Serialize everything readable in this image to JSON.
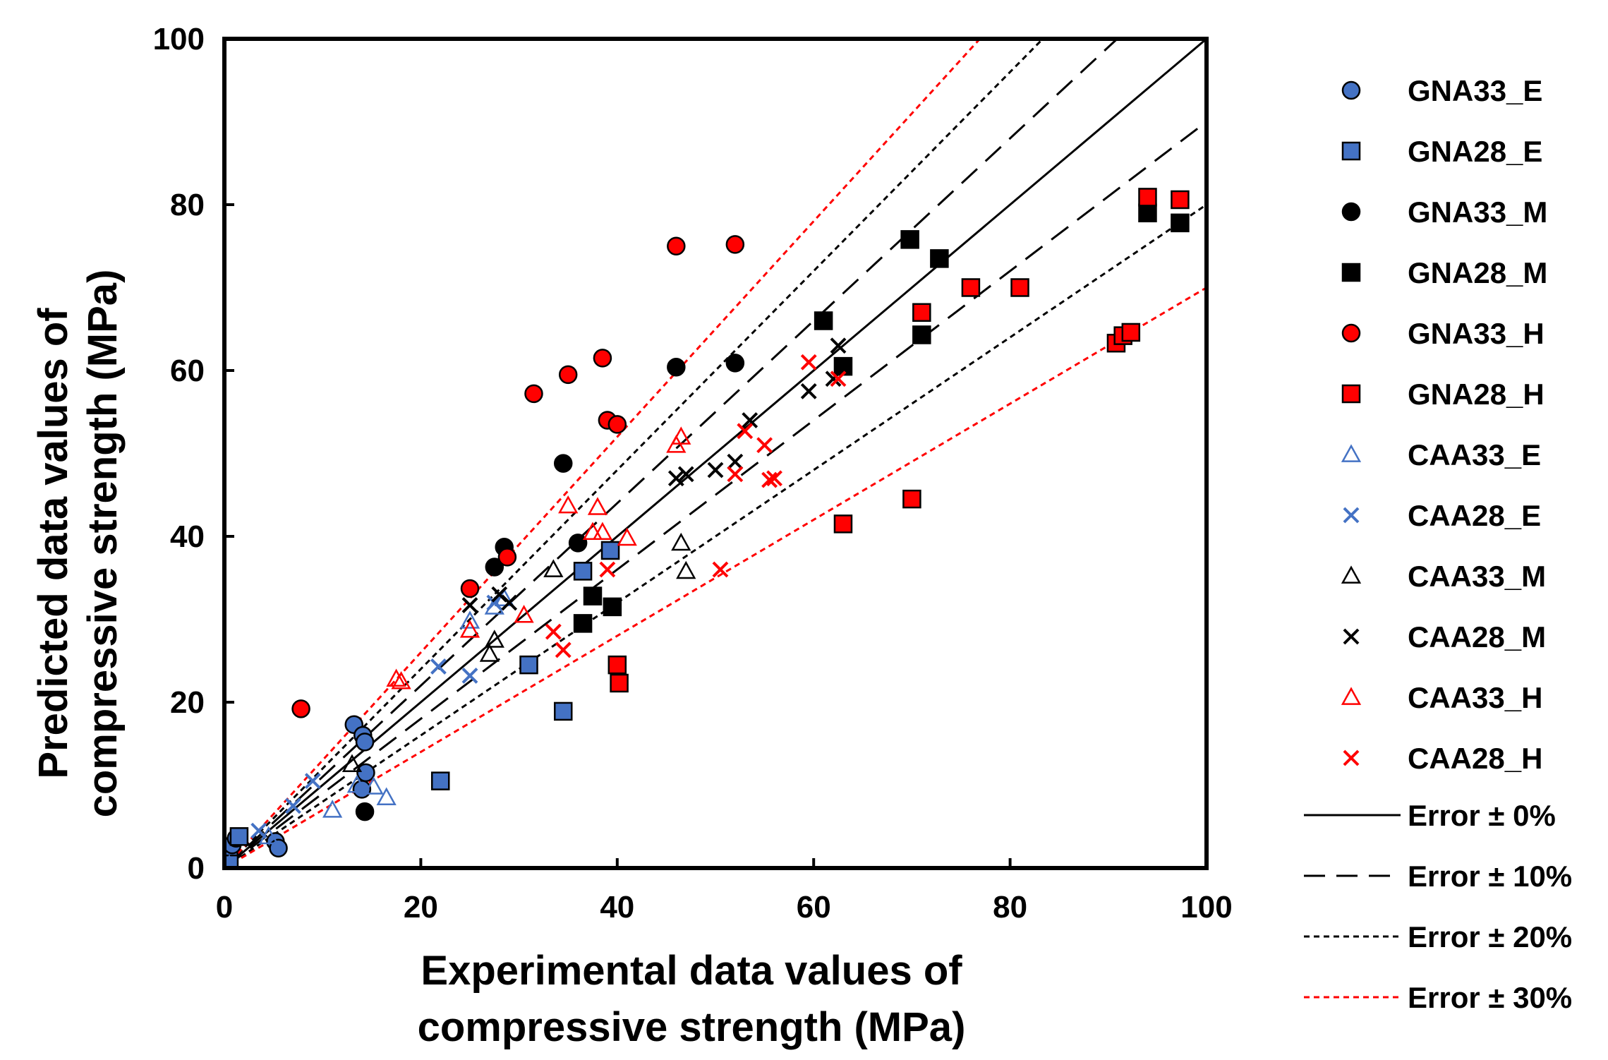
{
  "chart_data": {
    "type": "scatter",
    "xlabel_lines": [
      "Experimental data values of",
      "compressive strength (MPa)"
    ],
    "ylabel_lines": [
      "Predicted data values of",
      "compressive strength (MPa)"
    ],
    "xlim": [
      0,
      100
    ],
    "ylim": [
      0,
      100
    ],
    "xticks": [
      0,
      20,
      40,
      60,
      80,
      100
    ],
    "yticks": [
      0,
      20,
      40,
      60,
      80,
      100
    ],
    "grid": false,
    "legend_position": "right",
    "series": [
      {
        "name": "GNA33_E",
        "marker": "circle",
        "color": "#4472C4",
        "points": [
          [
            0.3,
            0.3
          ],
          [
            0.5,
            1.5
          ],
          [
            0.8,
            2.8
          ],
          [
            1.2,
            3.6
          ],
          [
            5.2,
            3.2
          ],
          [
            5.5,
            2.4
          ],
          [
            13.2,
            17.3
          ],
          [
            14.1,
            16.0
          ],
          [
            14.3,
            15.2
          ],
          [
            14.4,
            11.5
          ],
          [
            14.0,
            9.5
          ]
        ]
      },
      {
        "name": "GNA28_E",
        "marker": "square",
        "color": "#4472C4",
        "points": [
          [
            0.5,
            0.5
          ],
          [
            1.5,
            3.8
          ],
          [
            22.0,
            10.5
          ],
          [
            31.0,
            24.5
          ],
          [
            34.5,
            18.9
          ],
          [
            36.5,
            35.8
          ],
          [
            39.3,
            38.3
          ]
        ]
      },
      {
        "name": "GNA33_M",
        "marker": "circle",
        "color": "#000000",
        "points": [
          [
            14.3,
            6.8
          ],
          [
            27.5,
            36.3
          ],
          [
            28.5,
            38.7
          ],
          [
            34.5,
            48.8
          ],
          [
            36.0,
            39.2
          ],
          [
            46.0,
            60.4
          ],
          [
            52.0,
            60.9
          ]
        ]
      },
      {
        "name": "GNA28_M",
        "marker": "square",
        "color": "#000000",
        "points": [
          [
            36.5,
            29.5
          ],
          [
            37.5,
            32.8
          ],
          [
            39.5,
            31.5
          ],
          [
            61.0,
            66.0
          ],
          [
            63.0,
            60.5
          ],
          [
            69.8,
            75.8
          ],
          [
            71.0,
            64.3
          ],
          [
            72.8,
            73.5
          ],
          [
            94.0,
            79.0
          ],
          [
            97.3,
            77.8
          ]
        ]
      },
      {
        "name": "GNA33_H",
        "marker": "circle",
        "color": "#FF0000",
        "points": [
          [
            7.8,
            19.2
          ],
          [
            25.0,
            33.7
          ],
          [
            28.8,
            37.5
          ],
          [
            31.5,
            57.2
          ],
          [
            35.0,
            59.5
          ],
          [
            38.5,
            61.5
          ],
          [
            39.0,
            54.0
          ],
          [
            40.0,
            53.5
          ],
          [
            46.0,
            75.0
          ],
          [
            52.0,
            75.2
          ]
        ]
      },
      {
        "name": "GNA28_H",
        "marker": "square",
        "color": "#FF0000",
        "points": [
          [
            40.0,
            24.5
          ],
          [
            40.2,
            22.3
          ],
          [
            63.0,
            41.5
          ],
          [
            70.0,
            44.5
          ],
          [
            71.0,
            67.0
          ],
          [
            76.0,
            70.0
          ],
          [
            81.0,
            70.0
          ],
          [
            90.8,
            63.3
          ],
          [
            91.5,
            64.2
          ],
          [
            92.3,
            64.6
          ],
          [
            94.0,
            80.9
          ],
          [
            97.3,
            80.6
          ]
        ]
      },
      {
        "name": "CAA33_E",
        "marker": "triangle",
        "color": "#4472C4",
        "points": [
          [
            0.5,
            0.4
          ],
          [
            4.5,
            3.8
          ],
          [
            11.0,
            7.0
          ],
          [
            13.5,
            10.0
          ],
          [
            15.2,
            9.8
          ],
          [
            16.5,
            8.5
          ],
          [
            25.0,
            29.8
          ],
          [
            27.5,
            31.5
          ],
          [
            28.5,
            32.5
          ]
        ]
      },
      {
        "name": "CAA28_E",
        "marker": "x",
        "color": "#4472C4",
        "points": [
          [
            3.5,
            4.5
          ],
          [
            7.0,
            7.5
          ],
          [
            9.0,
            10.5
          ],
          [
            21.8,
            24.3
          ],
          [
            25.0,
            23.2
          ],
          [
            27.5,
            32.0
          ]
        ]
      },
      {
        "name": "CAA33_M",
        "marker": "triangle",
        "color": "#000000",
        "points": [
          [
            13.0,
            12.5
          ],
          [
            27.0,
            25.8
          ],
          [
            27.5,
            27.5
          ],
          [
            33.5,
            36.0
          ],
          [
            46.5,
            39.2
          ],
          [
            47.0,
            35.8
          ]
        ]
      },
      {
        "name": "CAA28_M",
        "marker": "x",
        "color": "#000000",
        "points": [
          [
            25.0,
            31.7
          ],
          [
            28.0,
            33.0
          ],
          [
            29.0,
            32.0
          ],
          [
            46.0,
            47.0
          ],
          [
            47.0,
            47.5
          ],
          [
            50.0,
            48.0
          ],
          [
            52.0,
            49.0
          ],
          [
            53.5,
            54.0
          ],
          [
            59.5,
            57.5
          ],
          [
            62.5,
            63.0
          ],
          [
            62.0,
            59.0
          ]
        ]
      },
      {
        "name": "CAA33_H",
        "marker": "triangle",
        "color": "#FF0000",
        "points": [
          [
            17.5,
            22.8
          ],
          [
            18.0,
            22.5
          ],
          [
            25.0,
            28.7
          ],
          [
            30.5,
            30.5
          ],
          [
            35.0,
            43.7
          ],
          [
            37.5,
            40.5
          ],
          [
            38.0,
            43.5
          ],
          [
            38.5,
            40.5
          ],
          [
            41.0,
            39.8
          ],
          [
            46.5,
            52.0
          ],
          [
            46.0,
            51.0
          ]
        ]
      },
      {
        "name": "CAA28_H",
        "marker": "x",
        "color": "#FF0000",
        "points": [
          [
            33.5,
            28.5
          ],
          [
            34.5,
            26.3
          ],
          [
            39.0,
            36.0
          ],
          [
            50.5,
            36.0
          ],
          [
            52.0,
            47.5
          ],
          [
            53.0,
            52.7
          ],
          [
            55.0,
            51.0
          ],
          [
            55.5,
            46.8
          ],
          [
            56.0,
            47.0
          ],
          [
            59.5,
            61.0
          ],
          [
            62.5,
            59.0
          ]
        ]
      }
    ],
    "reference_lines": [
      {
        "name": "Error ± 0%",
        "style": "solid",
        "color": "#000000",
        "slopes": [
          1.0
        ]
      },
      {
        "name": "Error ± 10%",
        "style": "longdash",
        "color": "#000000",
        "slopes": [
          1.1,
          0.9
        ]
      },
      {
        "name": "Error ± 20%",
        "style": "shortdash",
        "color": "#000000",
        "slopes": [
          1.2,
          0.8
        ]
      },
      {
        "name": "Error ± 30%",
        "style": "shortdash",
        "color": "#FF0000",
        "slopes": [
          1.3,
          0.7
        ]
      }
    ]
  }
}
